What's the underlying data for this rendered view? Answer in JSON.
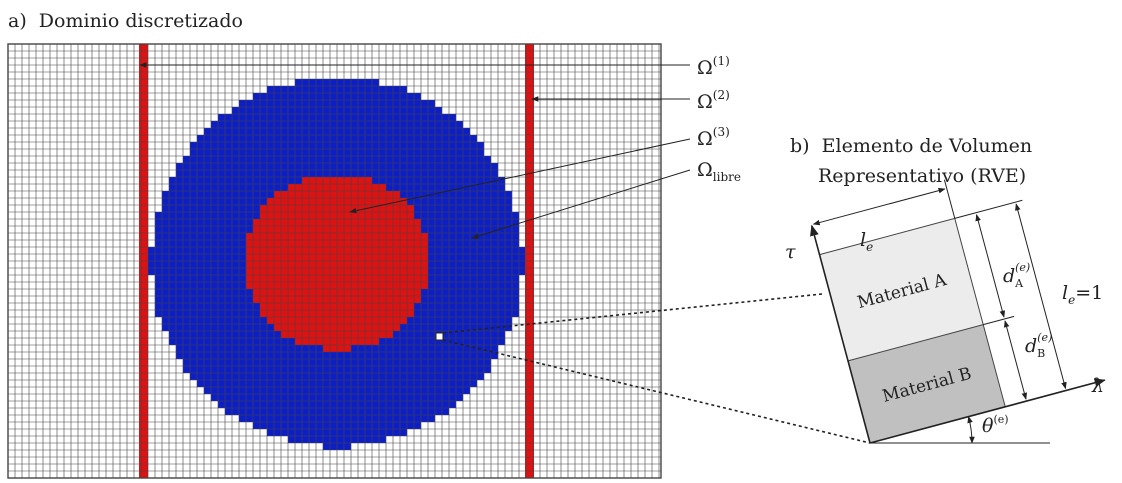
{
  "panel_a": {
    "letter": "a)",
    "title": "Dominio discretizado",
    "labels": {
      "omega1": {
        "base": "Ω",
        "sup": "(1)"
      },
      "omega2": {
        "base": "Ω",
        "sup": "(2)"
      },
      "omega3": {
        "base": "Ω",
        "sup": "(3)"
      },
      "omega_libre": {
        "base": "Ω",
        "sub": "libre"
      }
    },
    "colors": {
      "blue": "#0d1fc4",
      "red": "#de1212",
      "grid": "#444444",
      "background": "#ffffff"
    }
  },
  "panel_b": {
    "letter": "b)",
    "title_line1": "Elemento de Volumen",
    "title_line2": "Representativo (RVE)",
    "material_a": "Material A",
    "material_b": "Material B",
    "colors": {
      "material_a": "#ececec",
      "material_b": "#c0c0c0"
    },
    "symbols": {
      "tau": "τ",
      "lambda": "λ",
      "le": {
        "base": "l",
        "sub": "e"
      },
      "le_eq": {
        "base": "l",
        "sub": "e",
        "tail": "=1"
      },
      "dA": {
        "base": "d",
        "sub": "A",
        "sup": "(e)"
      },
      "dB": {
        "base": "d",
        "sub": "B",
        "sup": "(e)"
      },
      "theta": {
        "base": "θ",
        "sup": "(e)"
      }
    }
  }
}
